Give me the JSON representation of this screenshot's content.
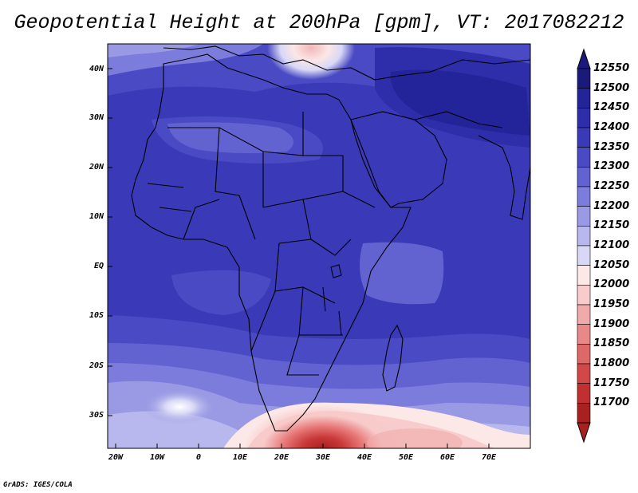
{
  "title": "Geopotential Height at 200hPa [gpm], VT: 2017082212",
  "credit": "GrADS: IGES/COLA",
  "lat_labels": [
    "40N",
    "30N",
    "20N",
    "10N",
    "EQ",
    "10S",
    "20S",
    "30S"
  ],
  "lon_labels": [
    "20W",
    "10W",
    "0",
    "10E",
    "20E",
    "30E",
    "40E",
    "50E",
    "60E",
    "70E"
  ],
  "colorbar": {
    "levels": [
      "12550",
      "12500",
      "12450",
      "12400",
      "12350",
      "12300",
      "12250",
      "12200",
      "12150",
      "12100",
      "12050",
      "12000",
      "11950",
      "11900",
      "11850",
      "11800",
      "11750",
      "11700"
    ],
    "colors": [
      "#1a1a7a",
      "#24249a",
      "#2e2eaa",
      "#3a3ab8",
      "#4a4ac4",
      "#6262d0",
      "#7c7cdc",
      "#9a9ae4",
      "#b8b8ee",
      "#d8d8f6",
      "#fde8e8",
      "#f8cccc",
      "#f0aaaa",
      "#e88888",
      "#de6868",
      "#d24848",
      "#c03030",
      "#a82020"
    ]
  }
}
